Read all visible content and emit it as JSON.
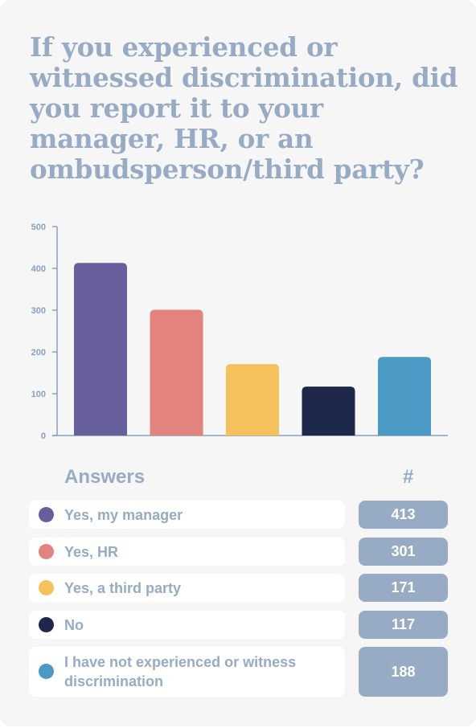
{
  "title": "If you experienced or witnessed discrimination, did you report it to your manager, HR, or an ombudsperson/third party?",
  "colors": {
    "background": "#f6f6f7",
    "text": "#97abc4",
    "axis": "#8aa0bc",
    "count_pill": "#97abc4"
  },
  "chart_data": {
    "type": "bar",
    "categories": [
      "Yes, my manager",
      "Yes, HR",
      "Yes, a third party",
      "No",
      "I have not experienced or witness discrimination"
    ],
    "values": [
      413,
      301,
      171,
      117,
      188
    ],
    "colors": [
      "#665f9b",
      "#e2837e",
      "#f4c15a",
      "#1d284a",
      "#4a9ac5"
    ],
    "ylim": [
      0,
      500
    ],
    "yticks": [
      0,
      100,
      200,
      300,
      400,
      500
    ],
    "title": "",
    "xlabel": "",
    "ylabel": "",
    "grid": false
  },
  "table": {
    "header_answers": "Answers",
    "header_count": "#",
    "rows": [
      {
        "label": "Yes, my manager",
        "count": "413",
        "color": "#665f9b"
      },
      {
        "label": "Yes, HR",
        "count": "301",
        "color": "#e2837e"
      },
      {
        "label": "Yes, a third party",
        "count": "171",
        "color": "#f4c15a"
      },
      {
        "label": "No",
        "count": "117",
        "color": "#1d284a"
      },
      {
        "label": "I have not experienced or witness discrimination",
        "count": "188",
        "color": "#4a9ac5"
      }
    ]
  }
}
